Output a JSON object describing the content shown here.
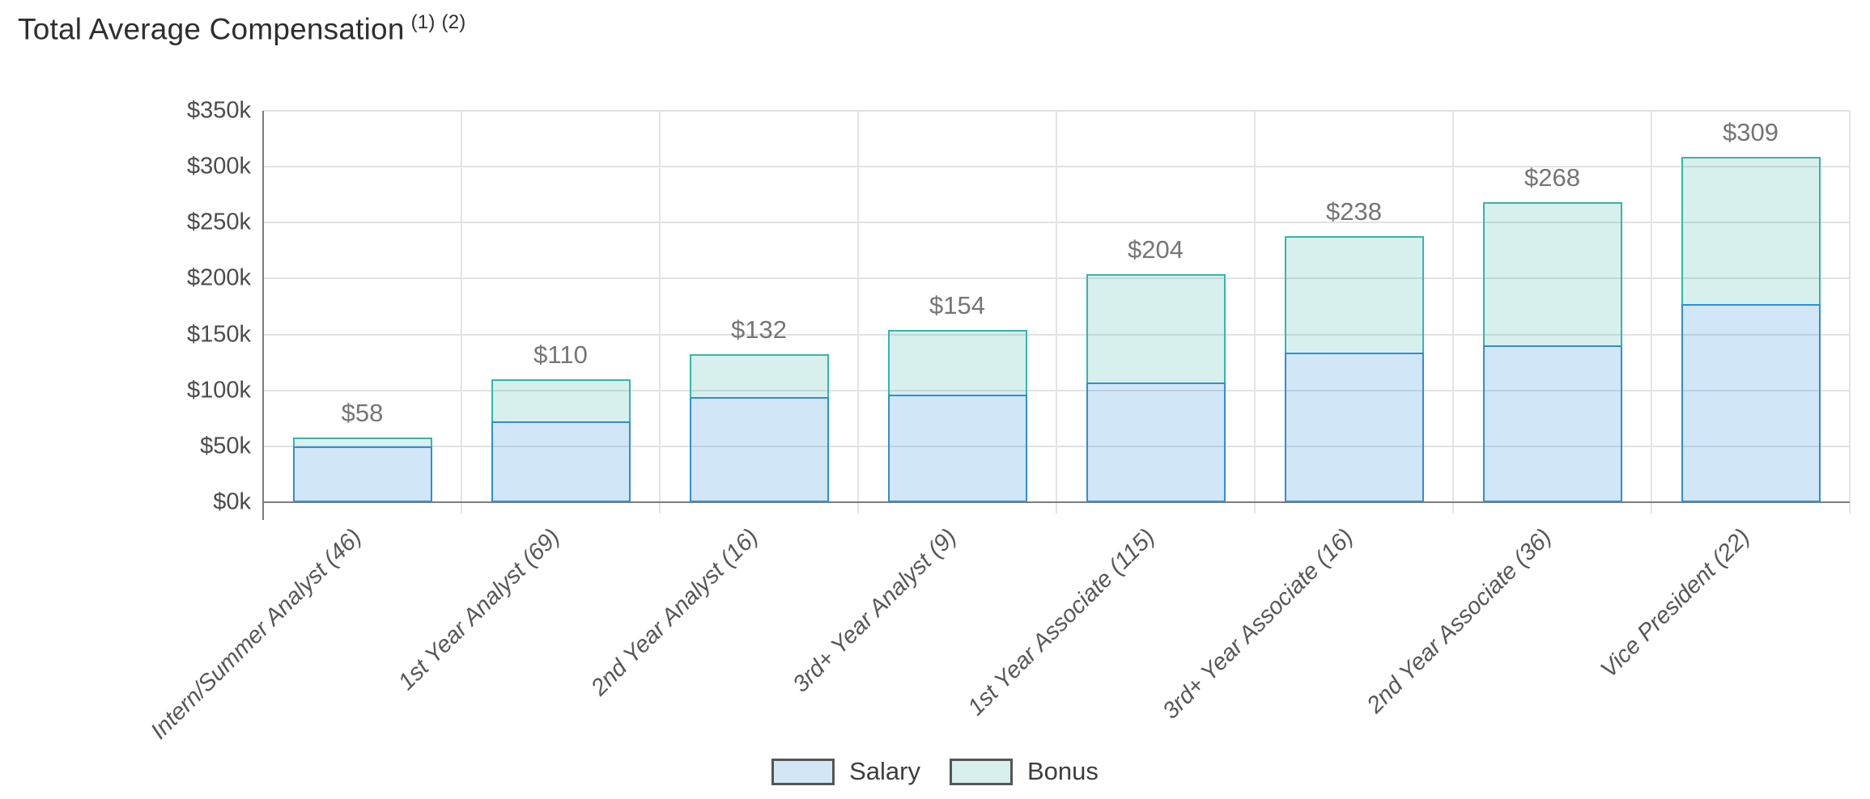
{
  "title": {
    "text": "Total Average Compensation",
    "footnote1": "(1)",
    "footnote2": "(2)"
  },
  "chart_data": {
    "type": "bar",
    "stacked": true,
    "title": "Total Average Compensation (1) (2)",
    "categories": [
      "Intern/Summer Analyst (46)",
      "1st Year Analyst (69)",
      "2nd Year Analyst (16)",
      "3rd+ Year Analyst (9)",
      "1st Year Associate (115)",
      "3rd+ Year Associate (16)",
      "2nd Year Associate (36)",
      "Vice President (22)"
    ],
    "series": [
      {
        "name": "Salary",
        "values": [
          50,
          72,
          94,
          96,
          107,
          134,
          140,
          177
        ],
        "fill": "rgba(46,143,216,0.22)",
        "border": "#2e8fd8"
      },
      {
        "name": "Bonus",
        "values": [
          8,
          38,
          38,
          58,
          97,
          104,
          128,
          132
        ],
        "fill": "rgba(53,181,172,0.20)",
        "border": "#35b5ac"
      }
    ],
    "totals": [
      58,
      110,
      132,
      154,
      204,
      238,
      268,
      309
    ],
    "total_labels": [
      "$58",
      "$110",
      "$132",
      "$154",
      "$204",
      "$238",
      "$268",
      "$309"
    ],
    "y_ticks_top_to_bottom": [
      "$350k",
      "$300k",
      "$250k",
      "$200k",
      "$150k",
      "$100k",
      "$50k",
      "$0k"
    ],
    "ylim": [
      0,
      350
    ],
    "y_unit": "thousand USD",
    "grid": true,
    "legend_position": "bottom-center"
  },
  "colors": {
    "salary_fill": "rgba(46,143,216,0.22)",
    "salary_border": "#2e8fd8",
    "bonus_fill": "rgba(53,181,172,0.20)",
    "bonus_border": "#35b5ac",
    "gridline": "#e2e2e2",
    "axis": "#7d7d7d",
    "value_label": "#757575",
    "tick_label": "#4c4c4c",
    "title_text": "#2e2e2e"
  }
}
